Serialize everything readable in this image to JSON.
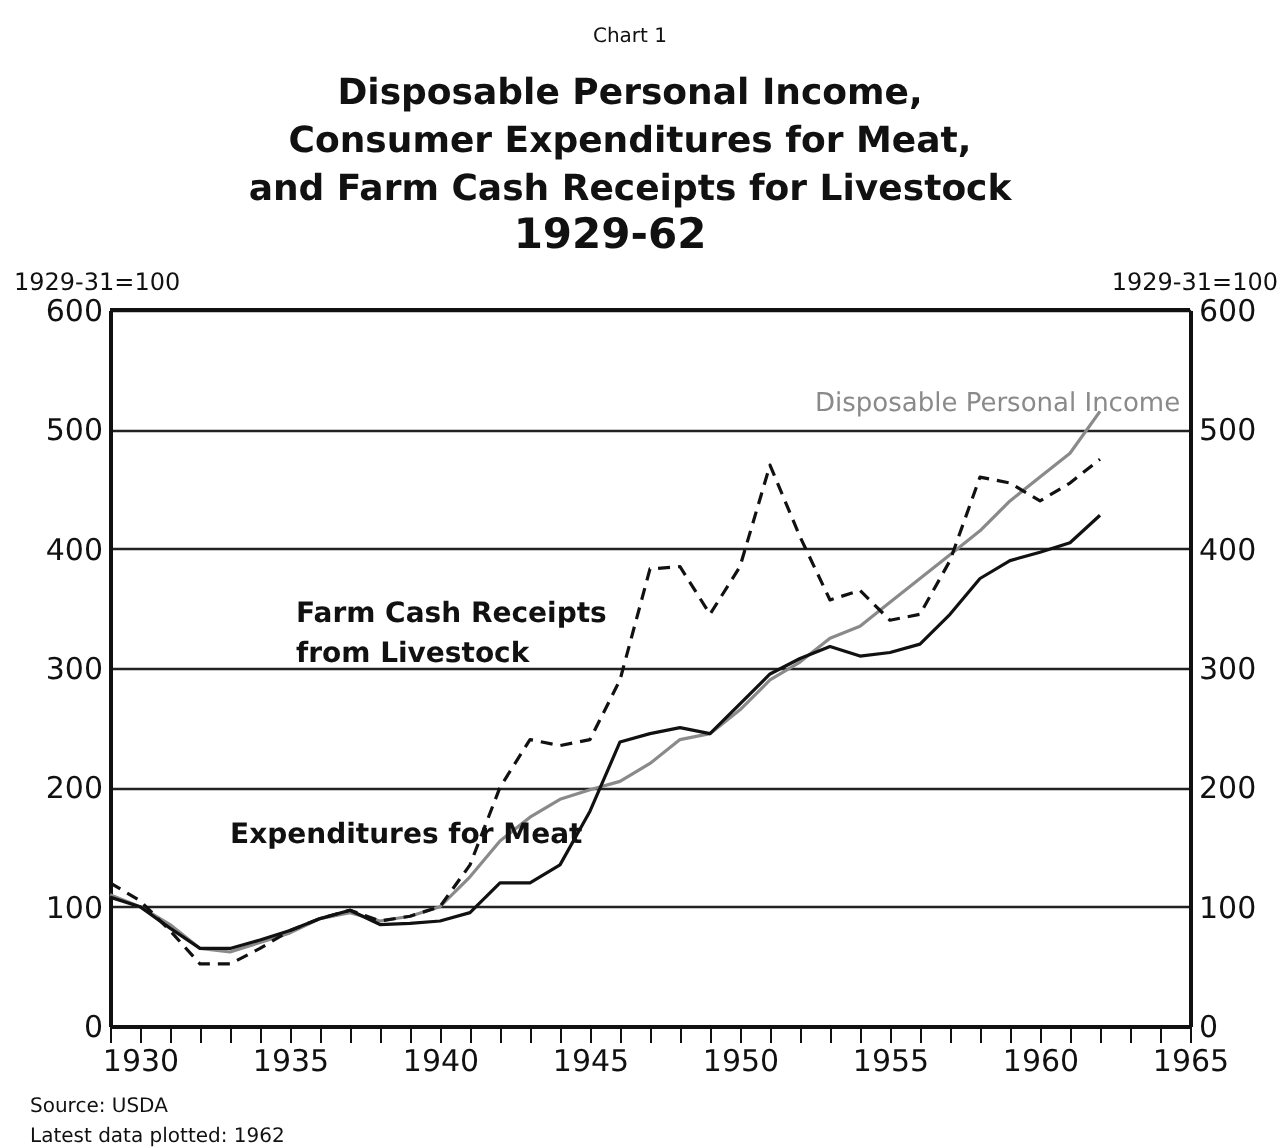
{
  "chart_data": {
    "type": "line",
    "title": "Disposable Personal Income,\nConsumer Expenditures for Meat,\nand Farm Cash Receipts for Livestock\n1929-62",
    "ylabel": "1929-31=100",
    "y2label": "1929-31=100",
    "annotations": [
      "Chart 1",
      "Source: USDA",
      "Latest data plotted: 1962"
    ],
    "x": [
      1929,
      1930,
      1931,
      1932,
      1933,
      1934,
      1935,
      1936,
      1937,
      1938,
      1939,
      1940,
      1941,
      1942,
      1943,
      1944,
      1945,
      1946,
      1947,
      1948,
      1949,
      1950,
      1951,
      1952,
      1953,
      1954,
      1955,
      1956,
      1957,
      1958,
      1959,
      1960,
      1961,
      1962
    ],
    "series": [
      {
        "name": "Disposable Personal Income",
        "color": "#8a8a8a",
        "line_style": "solid",
        "values": [
          110,
          100,
          85,
          65,
          62,
          70,
          78,
          90,
          95,
          88,
          92,
          100,
          125,
          155,
          175,
          190,
          198,
          205,
          220,
          240,
          245,
          265,
          290,
          305,
          325,
          335,
          355,
          375,
          395,
          415,
          440,
          460,
          480,
          515
        ]
      },
      {
        "name": "Farm Cash Receipts from Livestock",
        "color": "#111111",
        "line_style": "dashed",
        "values": [
          120,
          105,
          80,
          52,
          52,
          65,
          80,
          90,
          97,
          88,
          92,
          100,
          135,
          200,
          240,
          235,
          240,
          290,
          383,
          385,
          345,
          385,
          470,
          410,
          357,
          365,
          340,
          345,
          390,
          460,
          455,
          440,
          455,
          475
        ]
      },
      {
        "name": "Expenditures for Meat",
        "color": "#111111",
        "line_style": "solid",
        "values": [
          108,
          100,
          82,
          65,
          65,
          72,
          80,
          90,
          97,
          85,
          86,
          88,
          95,
          120,
          120,
          135,
          180,
          238,
          245,
          250,
          245,
          270,
          295,
          308,
          318,
          310,
          313,
          320,
          345,
          375,
          390,
          397,
          405,
          428
        ]
      }
    ],
    "xlim": [
      1929,
      1965
    ],
    "xticks": [
      {
        "value": 1929,
        "label": null
      },
      1930,
      {
        "value": 1931,
        "label": null
      },
      {
        "value": 1932,
        "label": null
      },
      {
        "value": 1933,
        "label": null
      },
      {
        "value": 1934,
        "label": null
      },
      1935,
      {
        "value": 1936,
        "label": null
      },
      {
        "value": 1937,
        "label": null
      },
      {
        "value": 1938,
        "label": null
      },
      {
        "value": 1939,
        "label": null
      },
      1940,
      {
        "value": 1941,
        "label": null
      },
      {
        "value": 1942,
        "label": null
      },
      {
        "value": 1943,
        "label": null
      },
      {
        "value": 1944,
        "label": null
      },
      1945,
      {
        "value": 1946,
        "label": null
      },
      {
        "value": 1947,
        "label": null
      },
      {
        "value": 1948,
        "label": null
      },
      {
        "value": 1949,
        "label": null
      },
      1950,
      {
        "value": 1951,
        "label": null
      },
      {
        "value": 1952,
        "label": null
      },
      {
        "value": 1953,
        "label": null
      },
      {
        "value": 1954,
        "label": null
      },
      1955,
      {
        "value": 1956,
        "label": null
      },
      {
        "value": 1957,
        "label": null
      },
      {
        "value": 1958,
        "label": null
      },
      {
        "value": 1959,
        "label": null
      },
      1960,
      {
        "value": 1961,
        "label": null
      },
      {
        "value": 1962,
        "label": null
      },
      {
        "value": 1963,
        "label": null
      },
      {
        "value": 1964,
        "label": null
      },
      1965
    ],
    "ylim": [
      0,
      600
    ],
    "yticks": [
      0,
      100,
      200,
      300,
      400,
      500,
      600
    ],
    "y2lim": [
      0,
      600
    ],
    "y2ticks": [
      0,
      100,
      200,
      300,
      400,
      500,
      600
    ],
    "grid": "y",
    "legend": false,
    "marker": "none"
  }
}
